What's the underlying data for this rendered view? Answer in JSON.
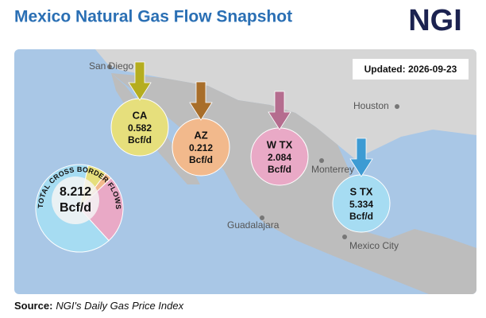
{
  "header": {
    "title": "Mexico Natural Gas Flow Snapshot",
    "logo": "NGI"
  },
  "updated": "Updated: 2026-09-23",
  "cities": [
    {
      "name": "San Diego"
    },
    {
      "name": "Houston"
    },
    {
      "name": "Monterrey"
    },
    {
      "name": "Guadalajara"
    },
    {
      "name": "Mexico City"
    }
  ],
  "regions": [
    {
      "name": "CA",
      "value": 0.582,
      "unit": "Bcf/d",
      "color": "#e6df7c",
      "arrow": "#b5ad1f"
    },
    {
      "name": "AZ",
      "value": 0.212,
      "unit": "Bcf/d",
      "color": "#f2b98c",
      "arrow": "#a86e2a"
    },
    {
      "name": "W TX",
      "value": 2.084,
      "unit": "Bcf/d",
      "color": "#e9a9c6",
      "arrow": "#b56d8f"
    },
    {
      "name": "S TX",
      "value": 5.334,
      "unit": "Bcf/d",
      "color": "#a6dcf2",
      "arrow": "#3d9bd3"
    }
  ],
  "total": {
    "label": "TOTAL CROSS BORDER FLOWS",
    "value": 8.212,
    "unit": "Bcf/d"
  },
  "source": {
    "label": "Source:",
    "text": "NGI's Daily Gas Price Index"
  }
}
